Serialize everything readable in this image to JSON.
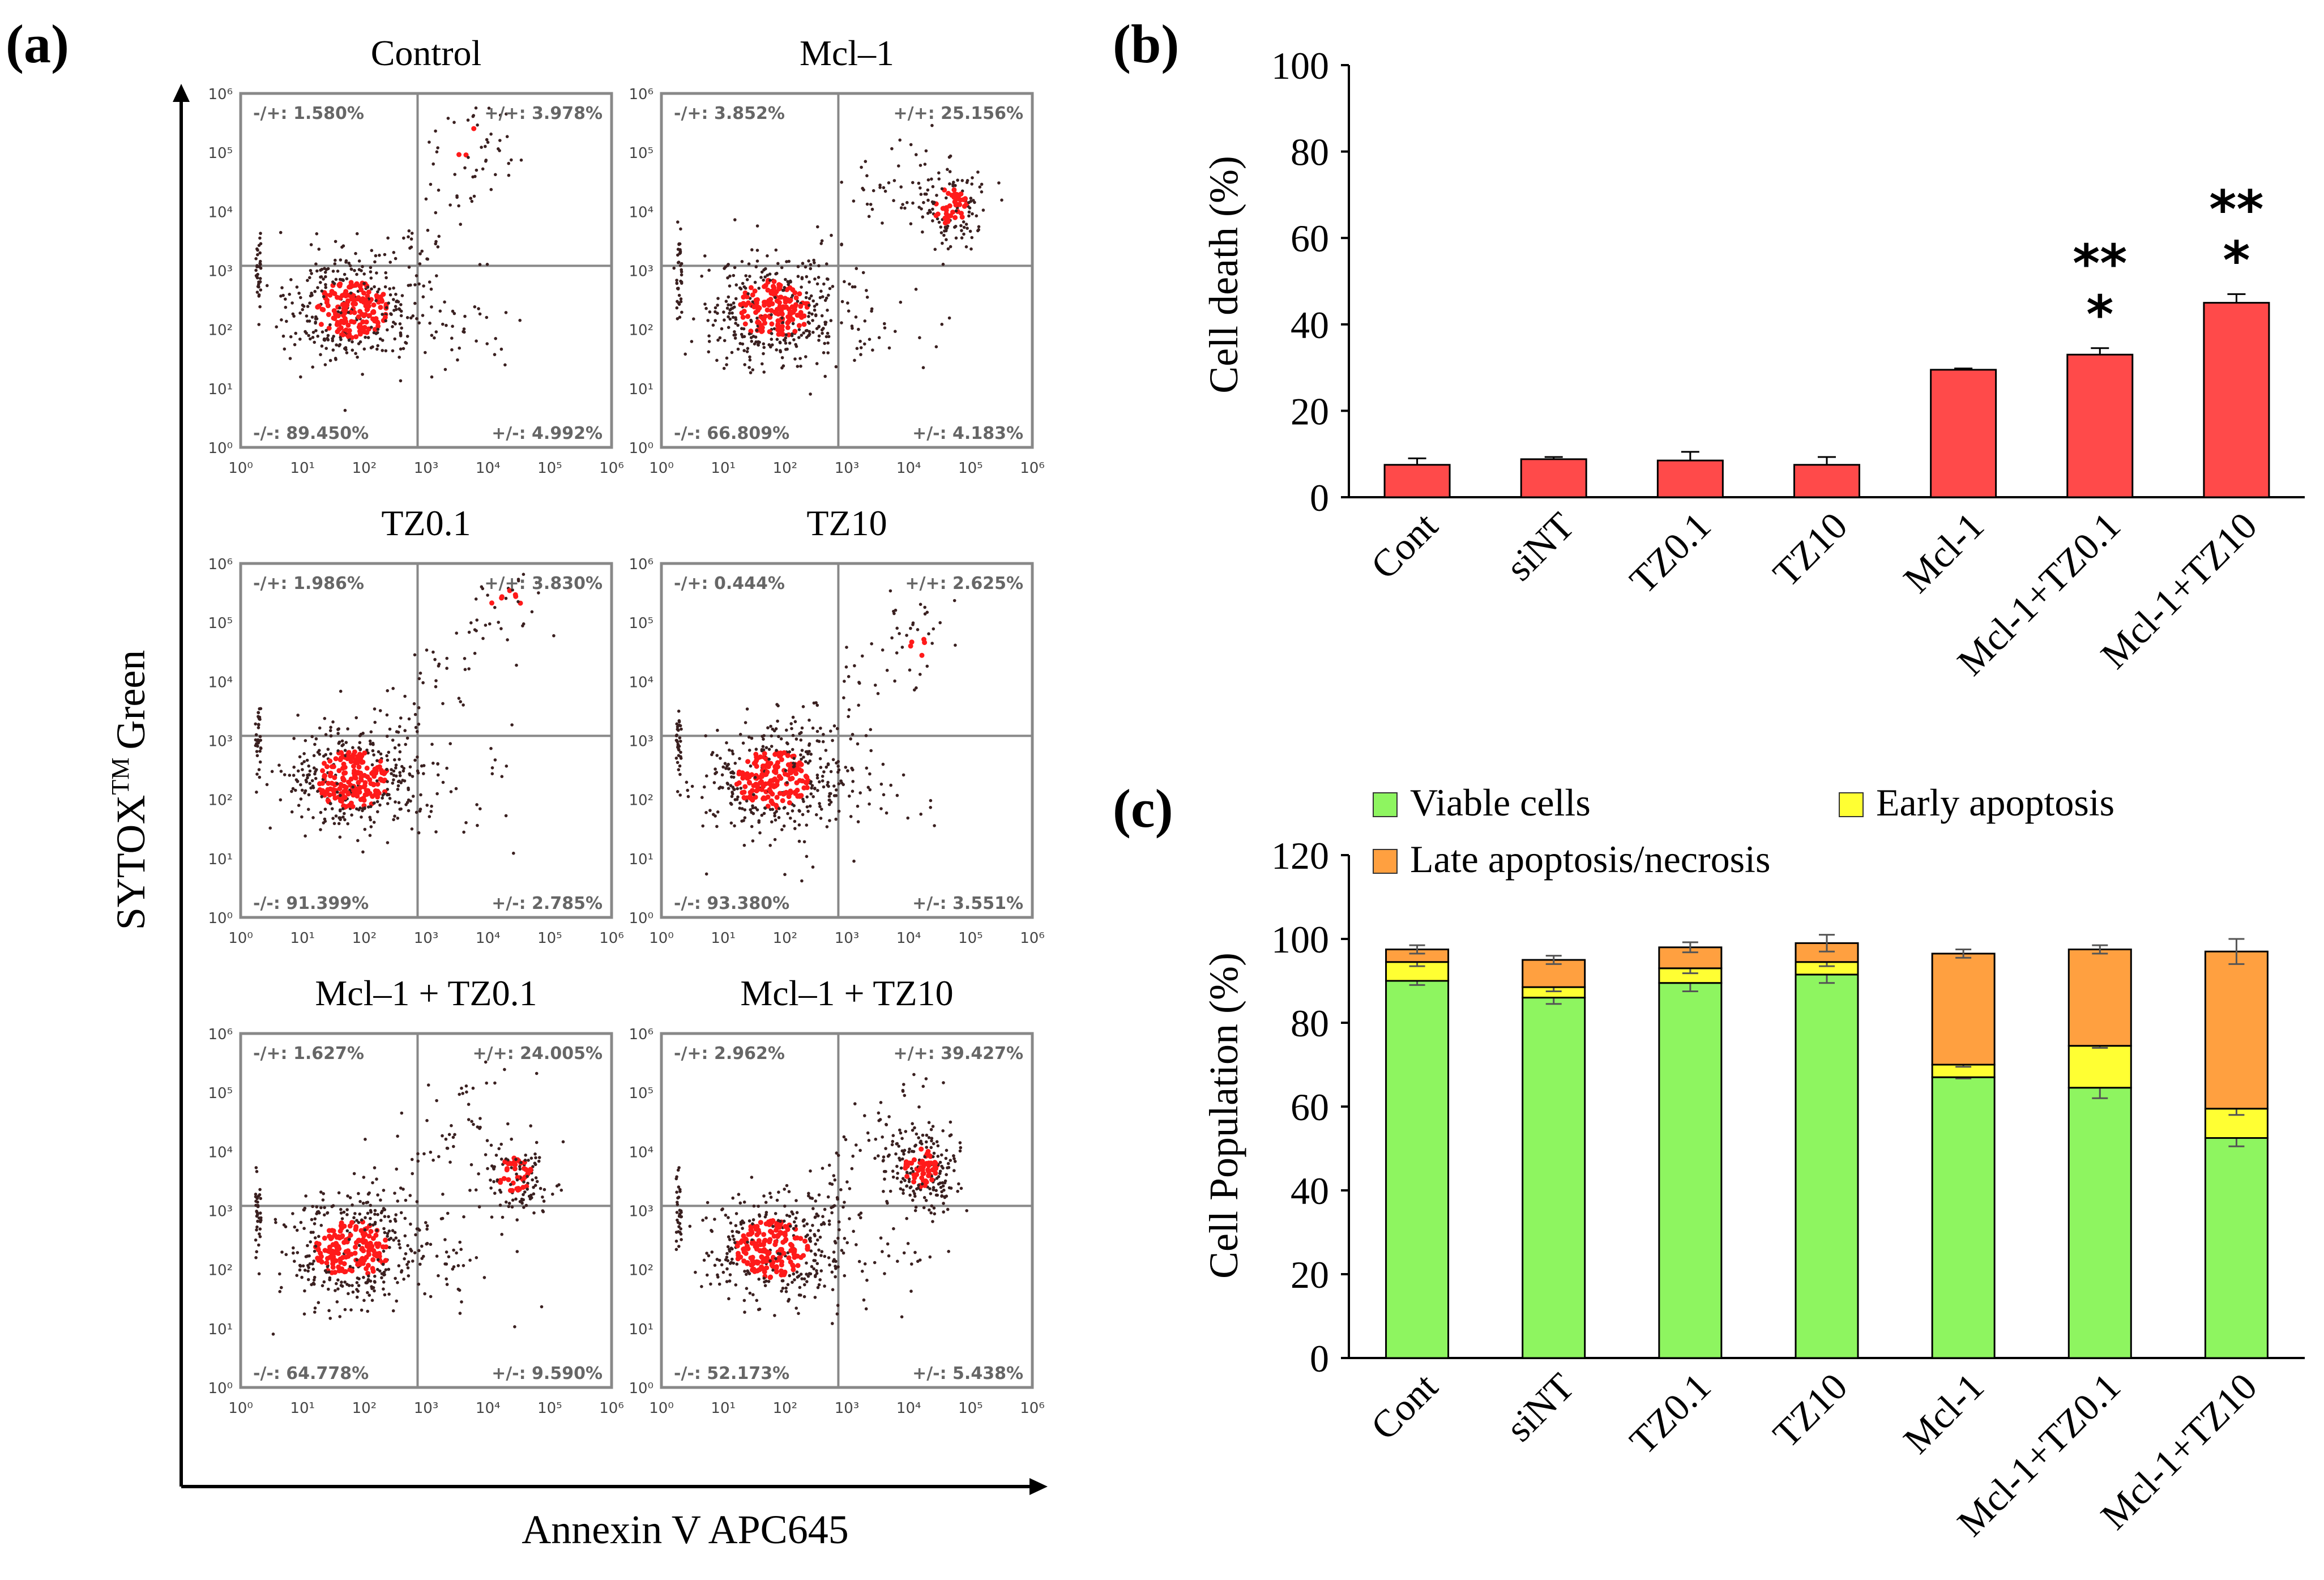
{
  "figure": {
    "panel_labels": [
      "(a)",
      "(b)",
      "(c)"
    ]
  },
  "chart_data": [
    {
      "type": "scatter",
      "panel": "(a)",
      "ylabel": "SYTOX",
      "ylabel_sup": "TM",
      "ylabel_tail": "Green",
      "xlabel": "Annexin V APC645",
      "tick_labels": [
        "10⁰",
        "10¹",
        "10²",
        "10³",
        "10⁴",
        "10⁵",
        "10⁶"
      ],
      "plots": [
        {
          "title": "Control",
          "ul": "-/+: 1.580%",
          "ur": "+/+: 3.978%",
          "ll": "-/-: 89.450%",
          "lr": "+/-: 4.992%"
        },
        {
          "title": "Mcl–1",
          "ul": "-/+: 3.852%",
          "ur": "+/+: 25.156%",
          "ll": "-/-: 66.809%",
          "lr": "+/-: 4.183%"
        },
        {
          "title": "TZ0.1",
          "ul": "-/+: 1.986%",
          "ur": "+/+: 3.830%",
          "ll": "-/-: 91.399%",
          "lr": "+/-: 2.785%"
        },
        {
          "title": "TZ10",
          "ul": "-/+: 0.444%",
          "ur": "+/+: 2.625%",
          "ll": "-/-: 93.380%",
          "lr": "+/-: 3.551%"
        },
        {
          "title": "Mcl–1 + TZ0.1",
          "ul": "-/+: 1.627%",
          "ur": "+/+: 24.005%",
          "ll": "-/-: 64.778%",
          "lr": "+/-: 9.590%"
        },
        {
          "title": "Mcl–1 + TZ10",
          "ul": "-/+: 2.962%",
          "ur": "+/+: 39.427%",
          "ll": "-/-: 52.173%",
          "lr": "+/-: 5.438%"
        }
      ]
    },
    {
      "type": "bar",
      "panel": "(b)",
      "title": "",
      "xlabel": "",
      "ylabel": "Cell death (%)",
      "ylim": [
        0,
        100
      ],
      "yticks": [
        "0",
        "20",
        "40",
        "60",
        "80",
        "100"
      ],
      "categories": [
        "Cont",
        "siNT",
        "TZ0.1",
        "TZ10",
        "Mcl-1",
        "Mcl-1+TZ0.1",
        "Mcl-1+TZ10"
      ],
      "values": [
        7.5,
        8.8,
        8.5,
        7.5,
        29.5,
        33,
        45
      ],
      "errors": [
        1.5,
        0.5,
        2,
        1.8,
        0.3,
        1.5,
        2
      ],
      "significance": [
        "",
        "",
        "",
        "",
        "",
        "**\n*",
        "**\n*"
      ],
      "color": "#ff4a4a"
    },
    {
      "type": "bar",
      "panel": "(c)",
      "stacked": true,
      "title": "",
      "xlabel": "",
      "ylabel": "Cell Population (%)",
      "ylim": [
        0,
        120
      ],
      "yticks": [
        "0",
        "20",
        "40",
        "60",
        "80",
        "100",
        "120"
      ],
      "categories": [
        "Cont",
        "siNT",
        "TZ0.1",
        "TZ10",
        "Mcl-1",
        "Mcl-1+TZ0.1",
        "Mcl-1+TZ10"
      ],
      "legend": [
        "Viable cells",
        "Early apoptosis",
        "Late apoptosis/necrosis"
      ],
      "series": [
        {
          "name": "Viable cells",
          "color": "#8ef560",
          "values": [
            90,
            86,
            89.5,
            91.5,
            67,
            64.5,
            52.5
          ],
          "errors": [
            1,
            1.5,
            2,
            2,
            0.3,
            2.5,
            2
          ]
        },
        {
          "name": "Early apoptosis",
          "color": "#ffff33",
          "values": [
            4.5,
            2.5,
            3.5,
            3,
            3,
            10,
            7
          ],
          "errors": [
            1,
            1,
            1.2,
            1,
            0.5,
            0.5,
            1.5
          ]
        },
        {
          "name": "Late apoptosis/necrosis",
          "color": "#ffa040",
          "values": [
            3,
            6.5,
            5,
            4.5,
            26.5,
            23,
            37.5
          ],
          "errors": [
            1,
            1,
            1.2,
            2,
            1,
            1,
            3
          ]
        }
      ]
    }
  ]
}
